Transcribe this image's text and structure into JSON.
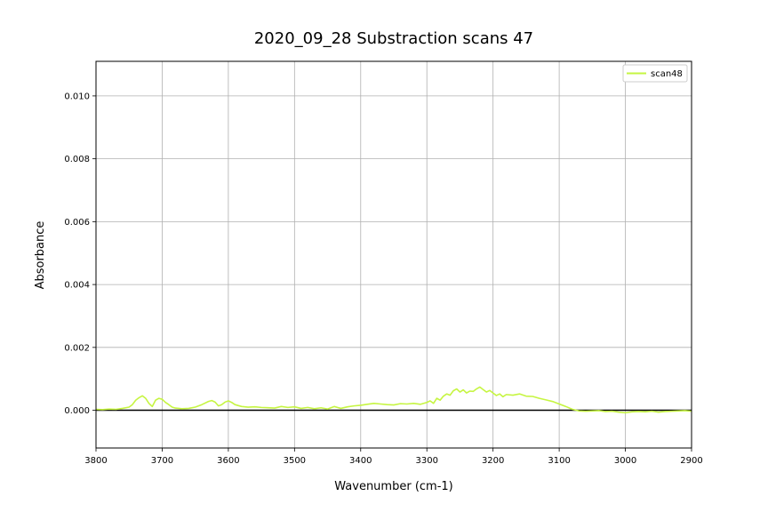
{
  "chart_data": {
    "type": "line",
    "title": "2020_09_28 Substraction scans 47",
    "xlabel": "Wavenumber (cm-1)",
    "ylabel": "Absorbance",
    "xlim": [
      3800,
      2900
    ],
    "ylim": [
      -0.0012,
      0.0111
    ],
    "x_reversed": true,
    "grid": true,
    "legend_position": "top-right",
    "x_ticks": [
      3800,
      3700,
      3600,
      3500,
      3400,
      3300,
      3200,
      3100,
      3000,
      2900
    ],
    "x_tick_labels": [
      "3800",
      "3700",
      "3600",
      "3500",
      "3400",
      "3300",
      "3200",
      "3100",
      "3000",
      "2900"
    ],
    "y_ticks": [
      0,
      0.002,
      0.004,
      0.006,
      0.008,
      0.01
    ],
    "y_tick_labels": [
      "0.000",
      "0.002",
      "0.004",
      "0.006",
      "0.008",
      "0.010"
    ],
    "reference_line": {
      "y": 0,
      "color": "#000000"
    },
    "series": [
      {
        "name": "scan48",
        "color": "#c6f542",
        "x": [
          3800,
          3790,
          3780,
          3770,
          3760,
          3750,
          3745,
          3740,
          3735,
          3730,
          3725,
          3720,
          3715,
          3710,
          3705,
          3700,
          3695,
          3690,
          3685,
          3680,
          3670,
          3660,
          3650,
          3640,
          3630,
          3625,
          3620,
          3615,
          3610,
          3605,
          3600,
          3595,
          3590,
          3580,
          3570,
          3560,
          3550,
          3540,
          3530,
          3520,
          3510,
          3500,
          3490,
          3480,
          3470,
          3460,
          3450,
          3440,
          3430,
          3420,
          3410,
          3400,
          3390,
          3380,
          3370,
          3360,
          3350,
          3340,
          3330,
          3320,
          3310,
          3300,
          3295,
          3290,
          3285,
          3280,
          3275,
          3270,
          3265,
          3260,
          3255,
          3250,
          3245,
          3240,
          3235,
          3230,
          3225,
          3220,
          3215,
          3210,
          3205,
          3200,
          3195,
          3190,
          3185,
          3180,
          3170,
          3160,
          3150,
          3140,
          3130,
          3120,
          3110,
          3100,
          3090,
          3080,
          3070,
          3060,
          3050,
          3040,
          3030,
          3020,
          3010,
          3000,
          2990,
          2980,
          2970,
          2960,
          2950,
          2940,
          2930,
          2920,
          2910,
          2900
        ],
        "y": [
          3e-05,
          2e-05,
          4e-05,
          3e-05,
          6e-05,
          0.0001,
          0.00018,
          0.00032,
          0.0004,
          0.00046,
          0.00038,
          0.00022,
          0.00012,
          0.00032,
          0.00038,
          0.00035,
          0.00025,
          0.00018,
          0.0001,
          7e-05,
          5e-05,
          6e-05,
          0.0001,
          0.00018,
          0.00028,
          0.00031,
          0.00026,
          0.00014,
          0.00018,
          0.00026,
          0.0003,
          0.00025,
          0.00018,
          0.00012,
          0.0001,
          0.00011,
          9e-05,
          8e-05,
          7e-05,
          0.00012,
          9e-05,
          0.00011,
          6e-05,
          9e-05,
          5e-05,
          8e-05,
          4e-05,
          0.00012,
          6e-05,
          0.00011,
          0.00014,
          0.00016,
          0.00019,
          0.00022,
          0.0002,
          0.00018,
          0.00017,
          0.00021,
          0.0002,
          0.00022,
          0.00019,
          0.00025,
          0.0003,
          0.00022,
          0.00038,
          0.00032,
          0.00045,
          0.00052,
          0.00048,
          0.00062,
          0.00068,
          0.00058,
          0.00065,
          0.00055,
          0.00061,
          0.0006,
          0.00068,
          0.00074,
          0.00066,
          0.00058,
          0.00063,
          0.00055,
          0.00047,
          0.00052,
          0.00043,
          0.0005,
          0.00048,
          0.00052,
          0.00045,
          0.00044,
          0.00038,
          0.00033,
          0.00028,
          0.0002,
          0.00012,
          3e-05,
          -2e-05,
          -3e-05,
          -2e-05,
          -1e-05,
          -4e-05,
          -3e-05,
          -6e-05,
          -8e-05,
          -5e-05,
          -4e-05,
          -5e-05,
          -3e-05,
          -6e-05,
          -4e-05,
          -3e-05,
          -2e-05,
          -1e-05,
          -3e-05
        ]
      }
    ]
  }
}
